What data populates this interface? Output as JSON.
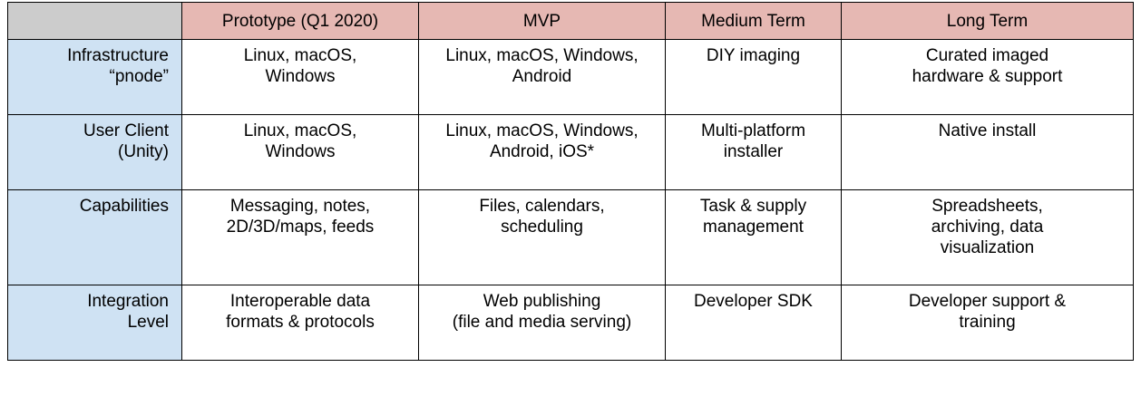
{
  "table": {
    "headers": [
      "",
      "Prototype (Q1 2020)",
      "MVP",
      "Medium Term",
      "Long Term"
    ],
    "rows": [
      {
        "label": "Infrastructure\n“pnode”",
        "cells": [
          "Linux, macOS,\nWindows",
          "Linux, macOS, Windows,\nAndroid",
          "DIY imaging",
          "Curated imaged\nhardware & support"
        ]
      },
      {
        "label": "User Client\n(Unity)",
        "cells": [
          "Linux, macOS,\nWindows",
          "Linux, macOS, Windows,\nAndroid, iOS*",
          "Multi-platform\ninstaller",
          "Native install"
        ]
      },
      {
        "label": "Capabilities",
        "cells": [
          "Messaging, notes,\n2D/3D/maps, feeds",
          "Files, calendars,\nscheduling",
          "Task & supply\nmanagement",
          "Spreadsheets,\narchiving, data\nvisualization"
        ]
      },
      {
        "label": "Integration\nLevel",
        "cells": [
          "Interoperable data\nformats & protocols",
          "Web publishing\n(file and media serving)",
          "Developer SDK",
          "Developer support &\ntraining"
        ]
      }
    ]
  }
}
